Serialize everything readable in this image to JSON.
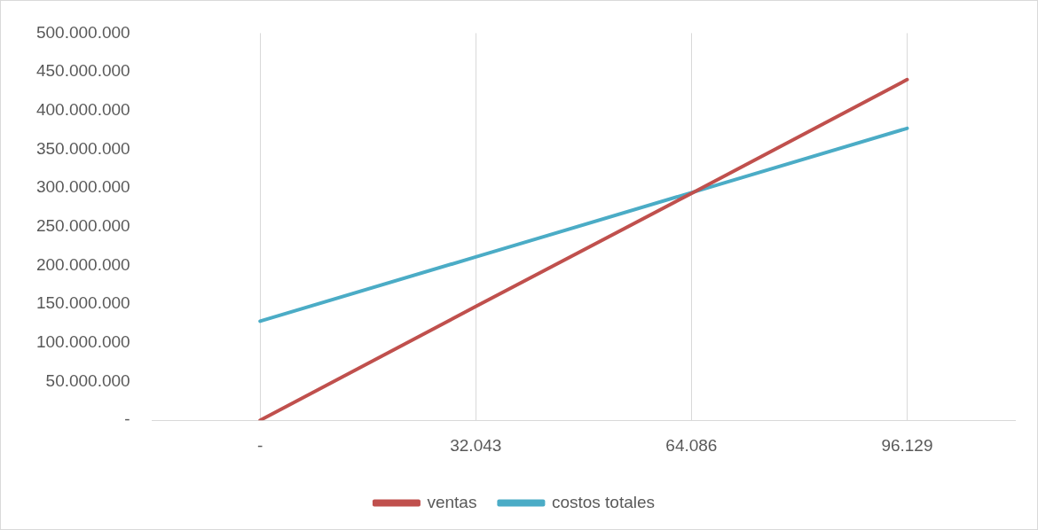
{
  "chart_data": {
    "type": "line",
    "categories": [
      "-",
      "32.043",
      "64.086",
      "96.129"
    ],
    "series": [
      {
        "name": "ventas",
        "color": "#c0504d",
        "values": [
          0,
          147000000,
          293000000,
          440000000
        ]
      },
      {
        "name": "costos totales",
        "color": "#4bacc6",
        "values": [
          128000000,
          211000000,
          294000000,
          377000000
        ]
      }
    ],
    "ylim": [
      0,
      500000000
    ],
    "yticks": [
      {
        "value": 0,
        "label": "-"
      },
      {
        "value": 50000000,
        "label": "50.000.000"
      },
      {
        "value": 100000000,
        "label": "100.000.000"
      },
      {
        "value": 150000000,
        "label": "150.000.000"
      },
      {
        "value": 200000000,
        "label": "200.000.000"
      },
      {
        "value": 250000000,
        "label": "250.000.000"
      },
      {
        "value": 300000000,
        "label": "300.000.000"
      },
      {
        "value": 350000000,
        "label": "350.000.000"
      },
      {
        "value": 400000000,
        "label": "400.000.000"
      },
      {
        "value": 450000000,
        "label": "450.000.000"
      },
      {
        "value": 500000000,
        "label": "500.000.000"
      }
    ],
    "grid": "x",
    "legend": "bottom",
    "marker": "none",
    "line_style": "solid"
  }
}
